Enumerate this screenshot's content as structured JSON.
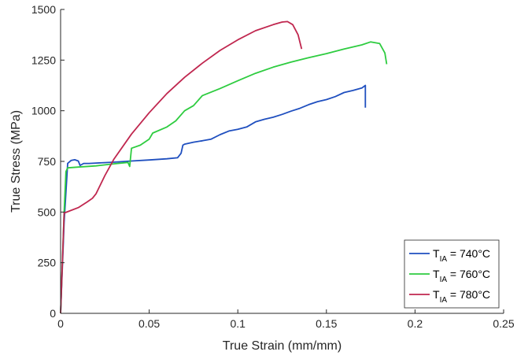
{
  "chart_data": {
    "type": "line",
    "title": "",
    "xlabel": "True Strain (mm/mm)",
    "ylabel": "True Stress (MPa)",
    "xlim": [
      0,
      0.25
    ],
    "ylim": [
      0,
      1500
    ],
    "xticks": [
      0,
      0.05,
      0.1,
      0.15,
      0.2,
      0.25
    ],
    "xtick_labels": [
      "0",
      "0.05",
      "0.1",
      "0.15",
      "0.2",
      "0.25"
    ],
    "yticks": [
      0,
      250,
      500,
      750,
      1000,
      1250,
      1500
    ],
    "ytick_labels": [
      "0",
      "250",
      "500",
      "750",
      "1000",
      "1250",
      "1500"
    ],
    "grid": false,
    "legend_position": "bottom-right",
    "series": [
      {
        "name_main": "T",
        "name_sub": "IA",
        "name_rest": " = 740°C",
        "color": "#1f4fbf",
        "x": [
          0,
          0.002,
          0.004,
          0.006,
          0.008,
          0.01,
          0.011,
          0.013,
          0.016,
          0.02,
          0.03,
          0.04,
          0.05,
          0.06,
          0.066,
          0.068,
          0.069,
          0.07,
          0.075,
          0.08,
          0.085,
          0.09,
          0.095,
          0.1,
          0.105,
          0.11,
          0.115,
          0.12,
          0.125,
          0.13,
          0.135,
          0.14,
          0.145,
          0.15,
          0.155,
          0.16,
          0.165,
          0.17,
          0.172,
          0.172
        ],
        "y": [
          0,
          450,
          740,
          755,
          758,
          752,
          730,
          740,
          740,
          742,
          746,
          752,
          757,
          763,
          768,
          790,
          830,
          835,
          845,
          852,
          860,
          882,
          900,
          908,
          920,
          945,
          958,
          968,
          982,
          998,
          1012,
          1030,
          1045,
          1055,
          1070,
          1090,
          1100,
          1112,
          1125,
          1015
        ]
      },
      {
        "name_main": "T",
        "name_sub": "IA",
        "name_rest": " = 760°C",
        "color": "#2ecc40",
        "x": [
          0,
          0.002,
          0.003,
          0.004,
          0.01,
          0.02,
          0.03,
          0.038,
          0.039,
          0.04,
          0.045,
          0.05,
          0.052,
          0.06,
          0.065,
          0.07,
          0.075,
          0.08,
          0.09,
          0.1,
          0.11,
          0.12,
          0.13,
          0.14,
          0.15,
          0.16,
          0.17,
          0.175,
          0.18,
          0.183,
          0.184
        ],
        "y": [
          0,
          500,
          700,
          718,
          722,
          728,
          738,
          745,
          725,
          815,
          830,
          860,
          890,
          920,
          950,
          1000,
          1025,
          1075,
          1110,
          1148,
          1185,
          1215,
          1240,
          1262,
          1282,
          1305,
          1325,
          1340,
          1332,
          1285,
          1230
        ]
      },
      {
        "name_main": "T",
        "name_sub": "IA",
        "name_rest": " = 780°C",
        "color": "#c0274f",
        "x": [
          0,
          0.002,
          0.005,
          0.01,
          0.015,
          0.018,
          0.02,
          0.025,
          0.03,
          0.04,
          0.05,
          0.06,
          0.07,
          0.08,
          0.09,
          0.1,
          0.11,
          0.12,
          0.125,
          0.128,
          0.131,
          0.134,
          0.136
        ],
        "y": [
          0,
          495,
          505,
          522,
          550,
          568,
          590,
          680,
          760,
          885,
          990,
          1085,
          1165,
          1235,
          1298,
          1350,
          1395,
          1425,
          1438,
          1440,
          1425,
          1375,
          1305
        ]
      }
    ]
  }
}
